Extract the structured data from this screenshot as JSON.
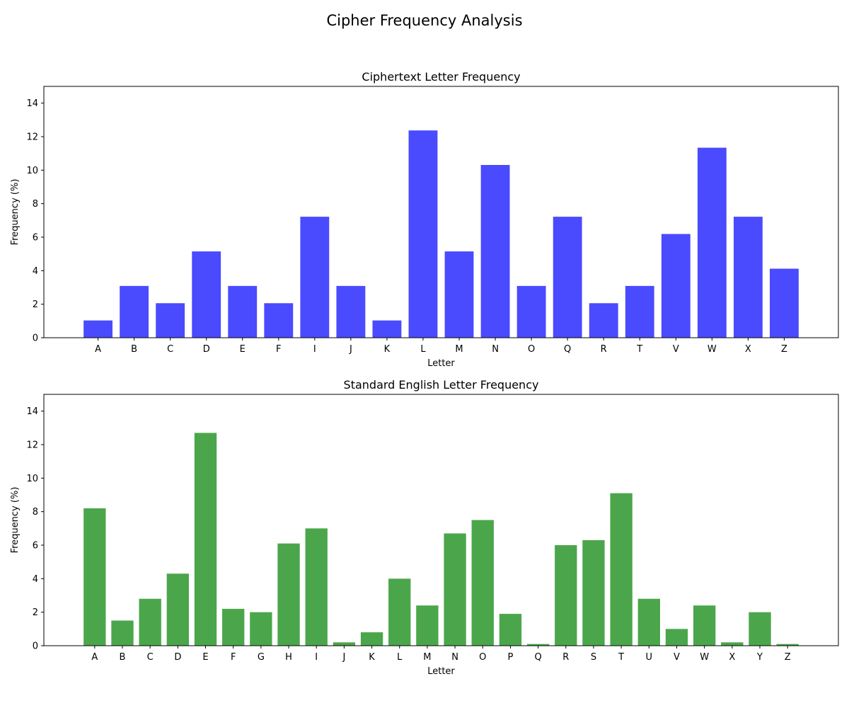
{
  "figure": {
    "title": "Cipher Frequency Analysis"
  },
  "chart_data": [
    {
      "type": "bar",
      "title": "Ciphertext Letter Frequency",
      "xlabel": "Letter",
      "ylabel": "Frequency (%)",
      "ylim": [
        0,
        15
      ],
      "yticks": [
        0,
        2,
        4,
        6,
        8,
        10,
        12,
        14
      ],
      "grid": false,
      "color": "#4a4aff",
      "categories": [
        "A",
        "B",
        "C",
        "D",
        "E",
        "F",
        "I",
        "J",
        "K",
        "L",
        "M",
        "N",
        "O",
        "Q",
        "R",
        "T",
        "V",
        "W",
        "X",
        "Z"
      ],
      "values": [
        1.03,
        3.09,
        2.06,
        5.15,
        3.09,
        2.06,
        7.22,
        3.09,
        1.03,
        12.37,
        5.15,
        10.31,
        3.09,
        7.22,
        2.06,
        3.09,
        6.19,
        11.34,
        7.22,
        4.12
      ]
    },
    {
      "type": "bar",
      "title": "Standard English Letter Frequency",
      "xlabel": "Letter",
      "ylabel": "Frequency (%)",
      "ylim": [
        0,
        15
      ],
      "yticks": [
        0,
        2,
        4,
        6,
        8,
        10,
        12,
        14
      ],
      "grid": false,
      "color": "#4ba64b",
      "categories": [
        "A",
        "B",
        "C",
        "D",
        "E",
        "F",
        "G",
        "H",
        "I",
        "J",
        "K",
        "L",
        "M",
        "N",
        "O",
        "P",
        "Q",
        "R",
        "S",
        "T",
        "U",
        "V",
        "W",
        "X",
        "Y",
        "Z"
      ],
      "values": [
        8.2,
        1.5,
        2.8,
        4.3,
        12.7,
        2.2,
        2.0,
        6.1,
        7.0,
        0.2,
        0.8,
        4.0,
        2.4,
        6.7,
        7.5,
        1.9,
        0.1,
        6.0,
        6.3,
        9.1,
        2.8,
        1.0,
        2.4,
        0.2,
        2.0,
        0.1
      ]
    }
  ]
}
